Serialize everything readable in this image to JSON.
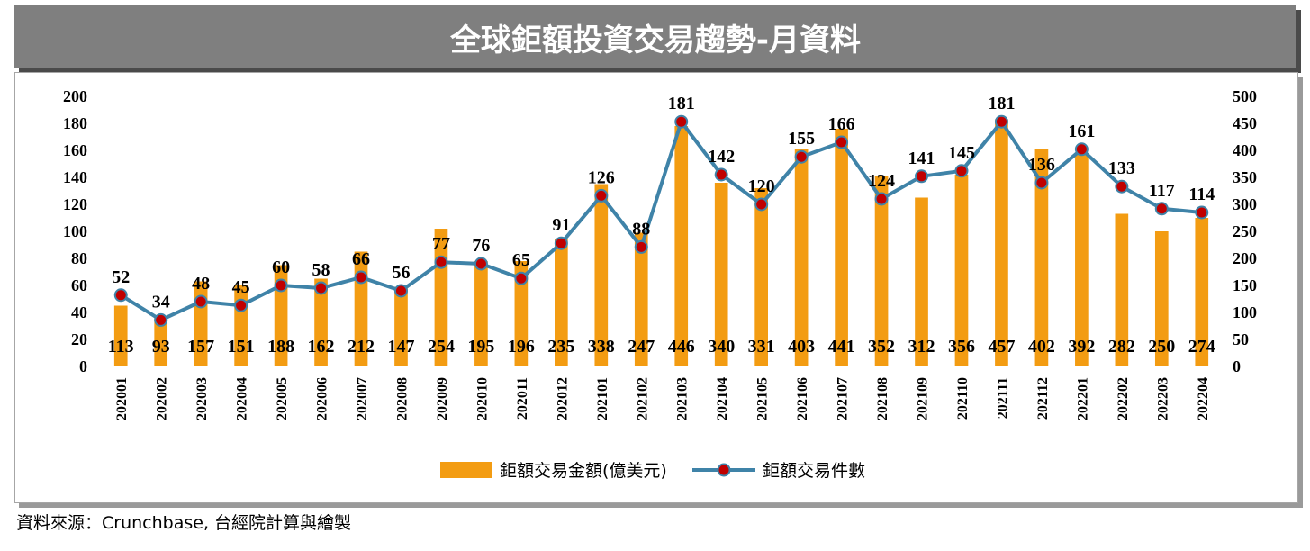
{
  "title": "全球鉅額投資交易趨勢-月資料",
  "source": "資料來源：Crunchbase, 台經院計算與繪製",
  "colors": {
    "bar": "#f39c12",
    "line": "#3f83a8",
    "marker": "#c00000",
    "title_bg": "#7f7f7f"
  },
  "chart_data": {
    "type": "bar+line",
    "categories": [
      "202001",
      "202002",
      "202003",
      "202004",
      "202005",
      "202006",
      "202007",
      "202008",
      "202009",
      "202010",
      "202011",
      "202012",
      "202101",
      "202102",
      "202103",
      "202104",
      "202105",
      "202106",
      "202107",
      "202108",
      "202109",
      "202110",
      "202111",
      "202112",
      "202201",
      "202202",
      "202203",
      "202204"
    ],
    "series": [
      {
        "name": "鉅額交易金額(億美元)",
        "type": "bar",
        "axis": "left",
        "values": [
          45,
          37,
          63,
          60,
          75,
          65,
          85,
          59,
          102,
          78,
          78,
          94,
          135,
          99,
          178,
          136,
          132,
          161,
          176,
          141,
          125,
          142,
          183,
          161,
          157,
          113,
          100,
          110
        ],
        "labels": [
          113,
          93,
          157,
          151,
          188,
          162,
          212,
          147,
          254,
          195,
          196,
          235,
          338,
          247,
          446,
          340,
          331,
          403,
          441,
          352,
          312,
          356,
          457,
          402,
          392,
          282,
          250,
          274
        ]
      },
      {
        "name": "鉅額交易件數",
        "type": "line",
        "axis": "right",
        "values": [
          132,
          86,
          120,
          113,
          150,
          145,
          165,
          140,
          193,
          190,
          163,
          228,
          316,
          221,
          453,
          355,
          300,
          388,
          415,
          310,
          352,
          362,
          453,
          340,
          402,
          333,
          292,
          285
        ],
        "labels": [
          52,
          34,
          48,
          45,
          60,
          58,
          66,
          56,
          77,
          76,
          65,
          91,
          126,
          88,
          181,
          142,
          120,
          155,
          166,
          124,
          141,
          145,
          181,
          136,
          161,
          133,
          117,
          114
        ]
      }
    ],
    "y_left": {
      "min": 0,
      "max": 200,
      "step": 20,
      "ticks": [
        "0",
        "20",
        "40",
        "60",
        "80",
        "100",
        "120",
        "140",
        "160",
        "180",
        "200"
      ]
    },
    "y_right": {
      "min": 0,
      "max": 500,
      "step": 50,
      "ticks": [
        "0",
        "50",
        "100",
        "150",
        "200",
        "250",
        "300",
        "350",
        "400",
        "450",
        "500"
      ]
    },
    "grid": false,
    "legend": "bottom-center"
  }
}
